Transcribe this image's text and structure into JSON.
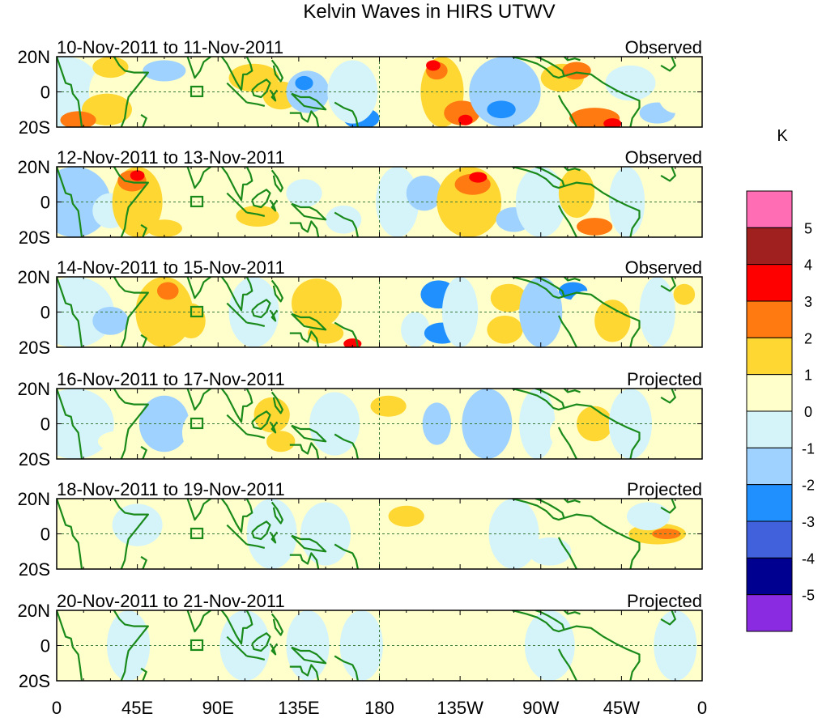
{
  "title": "Kelvin Waves in HIRS UTWV",
  "lat_labels": [
    "20N",
    "0",
    "20S"
  ],
  "lon_labels": [
    "0",
    "45E",
    "90E",
    "135E",
    "180",
    "135W",
    "90W",
    "45W",
    "0"
  ],
  "colorbar": {
    "unit": "K",
    "levels": [
      "5",
      "4",
      "3",
      "2",
      "1",
      "0",
      "-1",
      "-2",
      "-3",
      "-4",
      "-5"
    ],
    "colors": [
      "#ff6eb4",
      "#a02020",
      "#ff0000",
      "#ff7a10",
      "#ffd733",
      "#ffffcc",
      "#d4f4fa",
      "#a0d2ff",
      "#2190ff",
      "#4060dc",
      "#000090",
      "#8a2be2"
    ]
  },
  "coast_color": "#1a8a1a",
  "panels": [
    {
      "date_range": "10-Nov-2011 to 11-Nov-2011",
      "type": "Observed"
    },
    {
      "date_range": "12-Nov-2011 to 13-Nov-2011",
      "type": "Observed"
    },
    {
      "date_range": "14-Nov-2011 to 15-Nov-2011",
      "type": "Observed"
    },
    {
      "date_range": "16-Nov-2011 to 17-Nov-2011",
      "type": "Projected"
    },
    {
      "date_range": "18-Nov-2011 to 19-Nov-2011",
      "type": "Projected"
    },
    {
      "date_range": "20-Nov-2011 to 21-Nov-2011",
      "type": "Projected"
    }
  ]
}
